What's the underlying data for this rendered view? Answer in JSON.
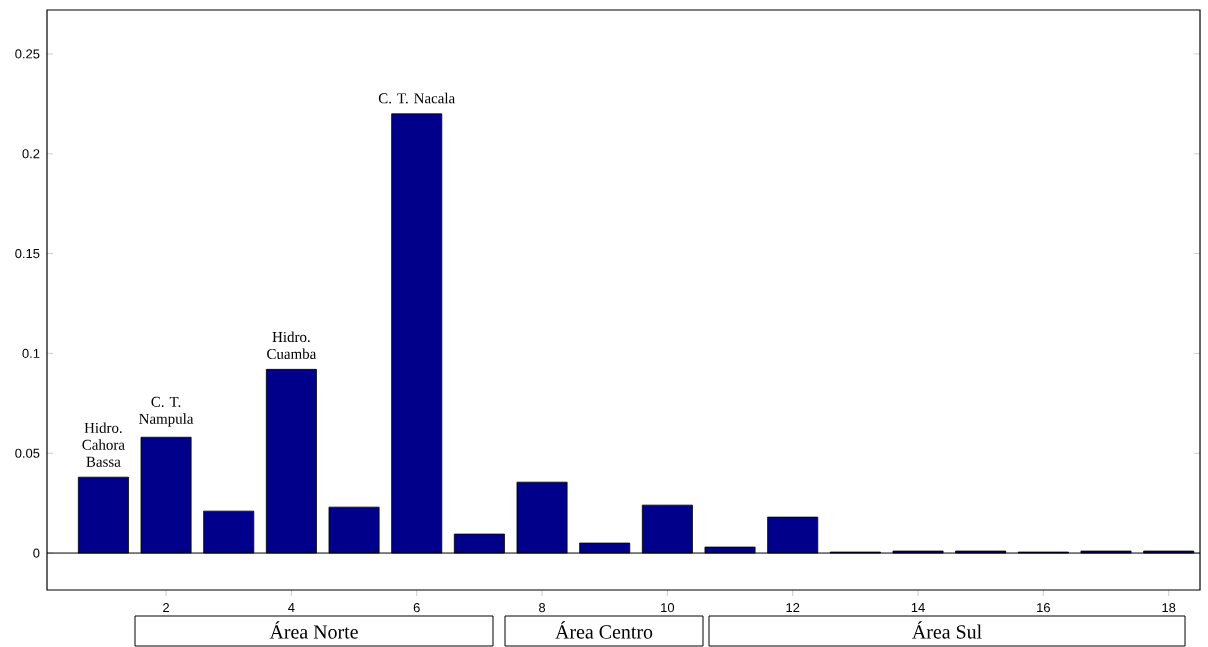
{
  "chart_data": {
    "type": "bar",
    "color": "#00008b",
    "x": [
      1,
      2,
      3,
      4,
      5,
      6,
      7,
      8,
      9,
      10,
      11,
      12,
      13,
      14,
      15,
      16,
      17,
      18
    ],
    "values": [
      0.038,
      0.058,
      0.021,
      0.092,
      0.023,
      0.22,
      0.0095,
      0.0355,
      0.005,
      0.024,
      0.003,
      0.018,
      0.0005,
      0.001,
      0.001,
      0.0005,
      0.001,
      0.001
    ],
    "xlim": [
      0.1,
      18.5
    ],
    "ylim": [
      -0.0185,
      0.272
    ],
    "xticks": [
      2,
      4,
      6,
      8,
      10,
      12,
      14,
      16,
      18
    ],
    "yticks": [
      0,
      0.05,
      0.1,
      0.15,
      0.2,
      0.25
    ],
    "annotations": [
      {
        "text": "Hidro. Cahora Bassa",
        "x": 1,
        "y": 0.038
      },
      {
        "text": "C. T. Nampula",
        "x": 2,
        "y": 0.058
      },
      {
        "text": "Hidro. Cuamba",
        "x": 4,
        "y": 0.092
      },
      {
        "text": "C. T. Nacala",
        "x": 6,
        "y": 0.22
      },
      "Área Norte",
      "Área Centro",
      "Área Sul"
    ]
  }
}
